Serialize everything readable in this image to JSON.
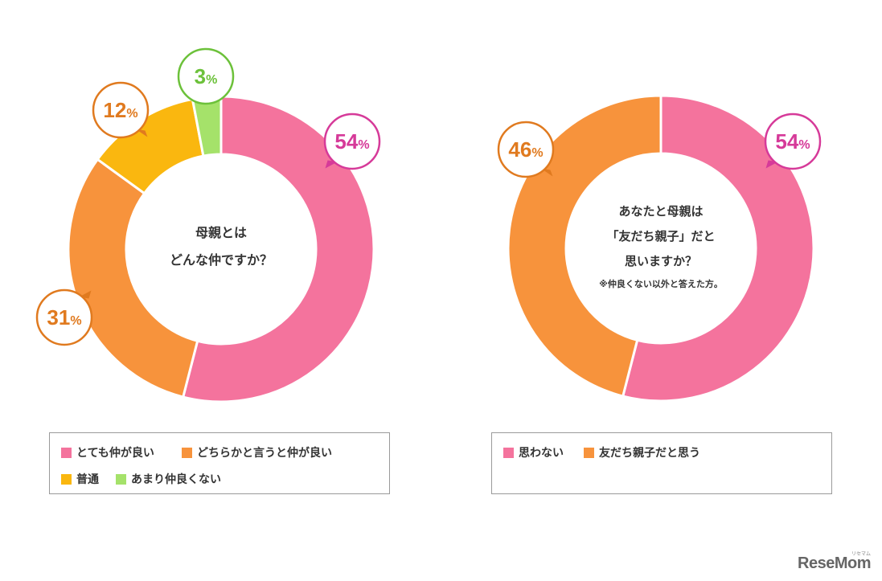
{
  "chart_data": [
    {
      "type": "pie",
      "donut": true,
      "center_lines": [
        "母親とは",
        "どんな仲ですか？"
      ],
      "slices": [
        {
          "label": "とても仲が良い",
          "value": 54,
          "display": "54",
          "color": "#F4739D"
        },
        {
          "label": "どちらかと言うと仲が良い",
          "value": 31,
          "display": "31",
          "color": "#F7933C"
        },
        {
          "label": "普通",
          "value": 12,
          "display": "12",
          "color": "#FAB70F"
        },
        {
          "label": "あまり仲良くない",
          "value": 3,
          "display": "3",
          "color": "#A5E26A"
        }
      ],
      "callout_colors": [
        "#D63A99",
        "#E07A1F",
        "#E07A1F",
        "#6CC13A"
      ],
      "percent_sign": "%"
    },
    {
      "type": "pie",
      "donut": true,
      "center_lines": [
        "あなたと母親は",
        "「友だち親子」だと",
        "思いますか？"
      ],
      "center_note": "※仲良くない以外と答えた方。",
      "slices": [
        {
          "label": "思わない",
          "value": 54,
          "display": "54",
          "color": "#F4739D"
        },
        {
          "label": "友だち親子だと思う",
          "value": 46,
          "display": "46",
          "color": "#F7933C"
        }
      ],
      "callout_colors": [
        "#D63A99",
        "#E07A1F"
      ],
      "percent_sign": "%"
    }
  ],
  "watermark": {
    "text": "ReseMom",
    "sub": "リセマム"
  }
}
